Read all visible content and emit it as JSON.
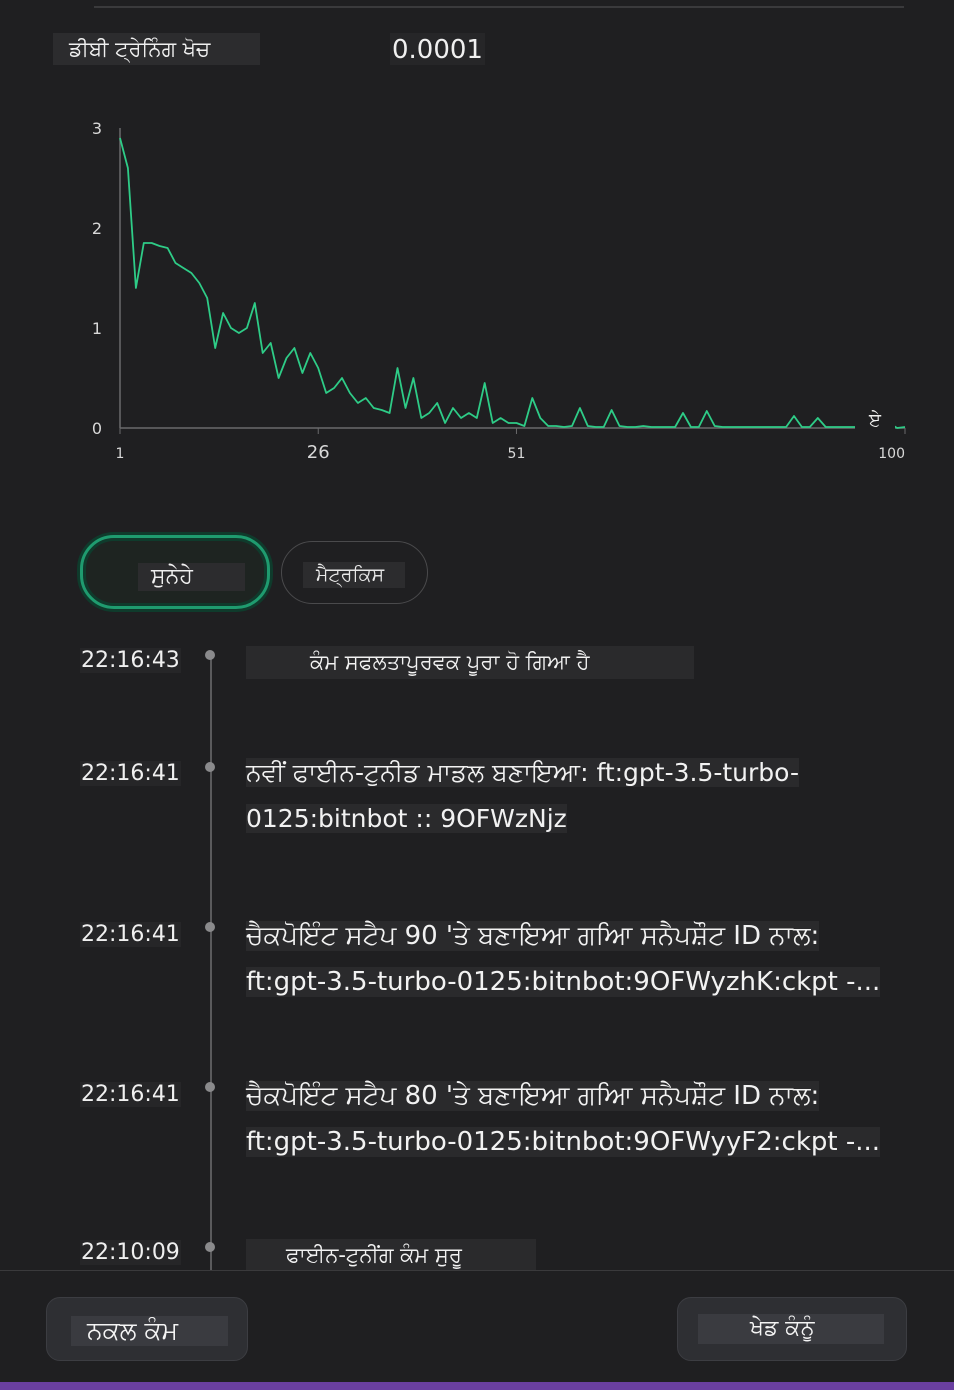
{
  "header": {
    "label": "ਡੀਬੀ ਟ੍ਰੇਨਿੰਗ ਖੋਚ",
    "value": "0.0001"
  },
  "chart_data": {
    "type": "line",
    "title": "",
    "xlabel": "",
    "ylabel": "",
    "x_ticks": [
      "1",
      "26",
      "51",
      "100"
    ],
    "y_ticks": [
      "0",
      "1",
      "2",
      "3"
    ],
    "ylim": [
      0,
      3
    ],
    "xlim": [
      1,
      100
    ],
    "grid": false,
    "line_color": "#2ecc87",
    "end_marker": "ਏ",
    "series": [
      {
        "values": [
          2.9,
          2.6,
          1.4,
          1.85,
          1.85,
          1.82,
          1.8,
          1.65,
          1.6,
          1.55,
          1.45,
          1.3,
          0.8,
          1.15,
          1.0,
          0.95,
          1.0,
          1.25,
          0.75,
          0.85,
          0.5,
          0.7,
          0.8,
          0.55,
          0.75,
          0.6,
          0.35,
          0.4,
          0.5,
          0.35,
          0.25,
          0.3,
          0.2,
          0.18,
          0.15,
          0.6,
          0.2,
          0.5,
          0.1,
          0.15,
          0.25,
          0.05,
          0.2,
          0.1,
          0.15,
          0.1,
          0.45,
          0.05,
          0.1,
          0.05,
          0.05,
          0.02,
          0.3,
          0.1,
          0.02,
          0.02,
          0.01,
          0.02,
          0.2,
          0.02,
          0.01,
          0.01,
          0.18,
          0.02,
          0.01,
          0.01,
          0.02,
          0.01,
          0.01,
          0.01,
          0.01,
          0.15,
          0.01,
          0.01,
          0.17,
          0.02,
          0.01,
          0.01,
          0.01,
          0.01,
          0.01,
          0.01,
          0.01,
          0.01,
          0.01,
          0.12,
          0.01,
          0.01,
          0.1,
          0.01,
          0.01,
          0.01,
          0.01,
          0.01,
          0.01,
          0.01,
          0.01,
          0.05,
          0.0,
          0.01
        ]
      }
    ]
  },
  "tabs": [
    {
      "label": "ਸੁਨੇਹੇ",
      "active": true
    },
    {
      "label": "ਮੈਟ੍ਰਕਿਸ",
      "active": false
    }
  ],
  "events": [
    {
      "time": "22:16:43",
      "lines": [
        "ਕੰਮ ਸਫਲਤਾਪੂਰਵਕ ਪੂਰਾ ਹੋ ਗਿਆ ਹੈ"
      ]
    },
    {
      "time": "22:16:41",
      "lines": [
        "ਨਵੀਂ ਫਾਈਨ-ਟੁਨੀਡ ਮਾਡਲ ਬਣਾਇਆ: ft:gpt-3.5-turbo-",
        "0125:bitnbot :: 9OFWzNjz"
      ]
    },
    {
      "time": "22:16:41",
      "lines": [
        "ਚੈਕਪੋਇੰਟ ਸਟੈਪ 90 'ਤੇ ਬਣਾਇਆ ਗਆਿ ਸਨੈਪਸ਼ੌਟ ID ਨਾਲ:",
        "ft:gpt-3.5-turbo-0125:bitnbot:9OFWyzhK:ckpt -..."
      ]
    },
    {
      "time": "22:16:41",
      "lines": [
        "ਚੈਕਪੋਇੰਟ ਸਟੈਪ 80 'ਤੇ ਬਣਾਇਆ ਗਆਿ ਸਨੈਪਸ਼ੌਟ ID ਨਾਲ:",
        "ft:gpt-3.5-turbo-0125:bitnbot:9OFWyyF2:ckpt -..."
      ]
    },
    {
      "time": "22:10:09",
      "lines": [
        "ਫਾਈਨ-ਟੁਨੀਂਗ ਕੰਮ ਸੁਰੂ"
      ]
    }
  ],
  "buttons": {
    "clone": "ਨਕਲ ਕੰਮ",
    "playground": "ਖੇਡ ਕੰਨੂੰ"
  }
}
